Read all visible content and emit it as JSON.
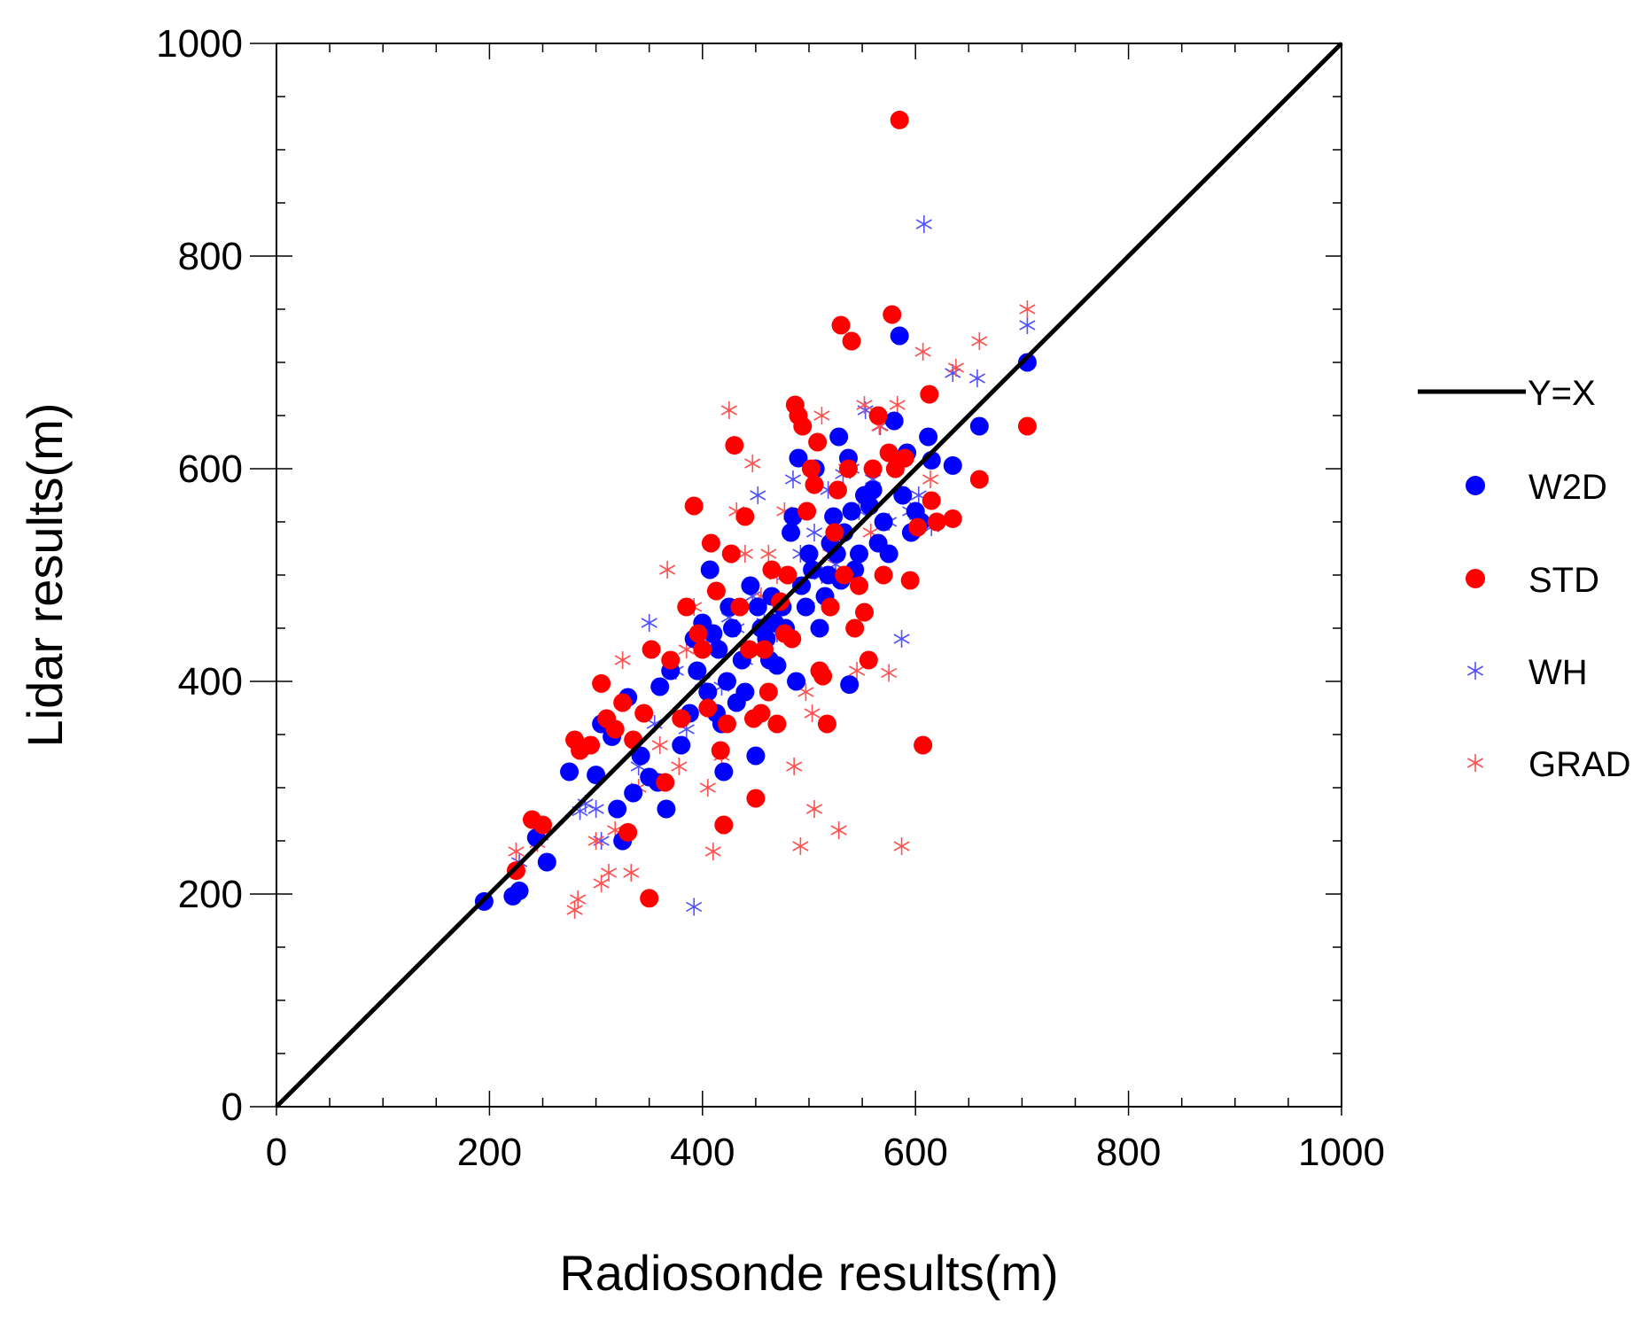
{
  "chart_data": {
    "type": "scatter",
    "title": "",
    "xlabel": "Radiosonde results(m)",
    "ylabel": "Lidar results(m)",
    "xlim": [
      0,
      1000
    ],
    "ylim": [
      0,
      1000
    ],
    "xticks": [
      0,
      200,
      400,
      600,
      800,
      1000
    ],
    "yticks": [
      0,
      200,
      400,
      600,
      800,
      1000
    ],
    "xtick_labels": [
      "0",
      "200",
      "400",
      "600",
      "800",
      "1000"
    ],
    "ytick_labels": [
      "0",
      "200",
      "400",
      "600",
      "800",
      "1000"
    ],
    "minor_tick_step": 50,
    "grid": false,
    "legend_position": "right",
    "reference_line": {
      "name": "Y=X",
      "x": [
        0,
        1000
      ],
      "y": [
        0,
        1000
      ],
      "color": "#000000"
    },
    "series": [
      {
        "name": "W2D",
        "marker": "filled-circle",
        "color": "#0000ff",
        "points": [
          [
            195,
            193
          ],
          [
            222,
            198
          ],
          [
            228,
            203
          ],
          [
            244,
            253
          ],
          [
            254,
            230
          ],
          [
            275,
            315
          ],
          [
            300,
            312
          ],
          [
            305,
            360
          ],
          [
            315,
            348
          ],
          [
            320,
            280
          ],
          [
            325,
            250
          ],
          [
            330,
            385
          ],
          [
            335,
            295
          ],
          [
            342,
            330
          ],
          [
            350,
            310
          ],
          [
            358,
            305
          ],
          [
            360,
            395
          ],
          [
            366,
            280
          ],
          [
            370,
            410
          ],
          [
            380,
            340
          ],
          [
            388,
            370
          ],
          [
            392,
            440
          ],
          [
            395,
            410
          ],
          [
            400,
            455
          ],
          [
            405,
            390
          ],
          [
            407,
            505
          ],
          [
            410,
            445
          ],
          [
            413,
            370
          ],
          [
            415,
            430
          ],
          [
            418,
            360
          ],
          [
            420,
            315
          ],
          [
            423,
            400
          ],
          [
            425,
            470
          ],
          [
            428,
            450
          ],
          [
            432,
            380
          ],
          [
            437,
            420
          ],
          [
            440,
            390
          ],
          [
            445,
            490
          ],
          [
            450,
            330
          ],
          [
            452,
            470
          ],
          [
            455,
            450
          ],
          [
            460,
            440
          ],
          [
            463,
            420
          ],
          [
            465,
            480
          ],
          [
            468,
            455
          ],
          [
            470,
            415
          ],
          [
            475,
            470
          ],
          [
            478,
            450
          ],
          [
            483,
            540
          ],
          [
            485,
            555
          ],
          [
            488,
            400
          ],
          [
            490,
            610
          ],
          [
            493,
            490
          ],
          [
            497,
            470
          ],
          [
            500,
            520
          ],
          [
            503,
            505
          ],
          [
            506,
            600
          ],
          [
            510,
            450
          ],
          [
            515,
            480
          ],
          [
            518,
            500
          ],
          [
            520,
            530
          ],
          [
            523,
            555
          ],
          [
            526,
            520
          ],
          [
            528,
            630
          ],
          [
            530,
            495
          ],
          [
            533,
            540
          ],
          [
            537,
            610
          ],
          [
            540,
            560
          ],
          [
            543,
            505
          ],
          [
            547,
            520
          ],
          [
            552,
            575
          ],
          [
            557,
            565
          ],
          [
            560,
            580
          ],
          [
            565,
            530
          ],
          [
            570,
            550
          ],
          [
            575,
            520
          ],
          [
            580,
            645
          ],
          [
            585,
            725
          ],
          [
            588,
            575
          ],
          [
            592,
            615
          ],
          [
            596,
            540
          ],
          [
            600,
            560
          ],
          [
            605,
            550
          ],
          [
            612,
            630
          ],
          [
            615,
            608
          ],
          [
            635,
            603
          ],
          [
            660,
            640
          ],
          [
            705,
            700
          ],
          [
            538,
            397
          ]
        ]
      },
      {
        "name": "STD",
        "marker": "filled-circle",
        "color": "#ff0000",
        "points": [
          [
            225,
            222
          ],
          [
            240,
            270
          ],
          [
            250,
            265
          ],
          [
            280,
            345
          ],
          [
            285,
            335
          ],
          [
            295,
            340
          ],
          [
            305,
            398
          ],
          [
            310,
            365
          ],
          [
            318,
            355
          ],
          [
            325,
            380
          ],
          [
            330,
            258
          ],
          [
            335,
            345
          ],
          [
            345,
            370
          ],
          [
            350,
            196
          ],
          [
            352,
            430
          ],
          [
            365,
            305
          ],
          [
            370,
            420
          ],
          [
            380,
            365
          ],
          [
            385,
            470
          ],
          [
            392,
            565
          ],
          [
            396,
            445
          ],
          [
            400,
            430
          ],
          [
            405,
            375
          ],
          [
            408,
            530
          ],
          [
            413,
            485
          ],
          [
            417,
            335
          ],
          [
            420,
            265
          ],
          [
            423,
            360
          ],
          [
            427,
            520
          ],
          [
            430,
            622
          ],
          [
            435,
            470
          ],
          [
            440,
            555
          ],
          [
            444,
            430
          ],
          [
            448,
            365
          ],
          [
            450,
            290
          ],
          [
            455,
            370
          ],
          [
            458,
            430
          ],
          [
            462,
            390
          ],
          [
            465,
            505
          ],
          [
            470,
            360
          ],
          [
            473,
            475
          ],
          [
            477,
            445
          ],
          [
            480,
            500
          ],
          [
            484,
            440
          ],
          [
            487,
            660
          ],
          [
            490,
            650
          ],
          [
            494,
            640
          ],
          [
            498,
            560
          ],
          [
            502,
            600
          ],
          [
            505,
            585
          ],
          [
            508,
            625
          ],
          [
            510,
            410
          ],
          [
            513,
            405
          ],
          [
            517,
            360
          ],
          [
            520,
            470
          ],
          [
            524,
            540
          ],
          [
            527,
            580
          ],
          [
            530,
            735
          ],
          [
            533,
            500
          ],
          [
            537,
            600
          ],
          [
            540,
            720
          ],
          [
            543,
            450
          ],
          [
            547,
            490
          ],
          [
            552,
            465
          ],
          [
            556,
            420
          ],
          [
            560,
            600
          ],
          [
            565,
            650
          ],
          [
            570,
            500
          ],
          [
            575,
            615
          ],
          [
            578,
            745
          ],
          [
            581,
            600
          ],
          [
            585,
            928
          ],
          [
            590,
            610
          ],
          [
            595,
            495
          ],
          [
            602,
            545
          ],
          [
            607,
            340
          ],
          [
            613,
            670
          ],
          [
            615,
            570
          ],
          [
            620,
            550
          ],
          [
            635,
            553
          ],
          [
            660,
            590
          ],
          [
            705,
            640
          ]
        ]
      },
      {
        "name": "WH",
        "marker": "asterisk",
        "color": "#5050ff",
        "points": [
          [
            228,
            230
          ],
          [
            248,
            255
          ],
          [
            285,
            278
          ],
          [
            290,
            285
          ],
          [
            300,
            280
          ],
          [
            305,
            250
          ],
          [
            340,
            320
          ],
          [
            350,
            455
          ],
          [
            355,
            360
          ],
          [
            375,
            410
          ],
          [
            385,
            355
          ],
          [
            392,
            188
          ],
          [
            400,
            400
          ],
          [
            410,
            435
          ],
          [
            418,
            395
          ],
          [
            425,
            460
          ],
          [
            432,
            450
          ],
          [
            440,
            420
          ],
          [
            447,
            480
          ],
          [
            452,
            575
          ],
          [
            458,
            455
          ],
          [
            465,
            480
          ],
          [
            470,
            445
          ],
          [
            478,
            500
          ],
          [
            485,
            590
          ],
          [
            492,
            520
          ],
          [
            498,
            470
          ],
          [
            505,
            540
          ],
          [
            512,
            500
          ],
          [
            518,
            580
          ],
          [
            525,
            510
          ],
          [
            532,
            595
          ],
          [
            540,
            600
          ],
          [
            547,
            560
          ],
          [
            553,
            655
          ],
          [
            560,
            590
          ],
          [
            567,
            640
          ],
          [
            575,
            550
          ],
          [
            582,
            600
          ],
          [
            587,
            440
          ],
          [
            595,
            560
          ],
          [
            603,
            575
          ],
          [
            608,
            830
          ],
          [
            615,
            545
          ],
          [
            635,
            690
          ],
          [
            658,
            685
          ],
          [
            705,
            735
          ]
        ]
      },
      {
        "name": "GRAD",
        "marker": "asterisk",
        "color": "#ff5050",
        "points": [
          [
            225,
            240
          ],
          [
            245,
            248
          ],
          [
            280,
            185
          ],
          [
            283,
            195
          ],
          [
            300,
            250
          ],
          [
            305,
            210
          ],
          [
            312,
            220
          ],
          [
            318,
            260
          ],
          [
            325,
            420
          ],
          [
            333,
            220
          ],
          [
            340,
            300
          ],
          [
            360,
            340
          ],
          [
            367,
            505
          ],
          [
            378,
            320
          ],
          [
            385,
            430
          ],
          [
            392,
            470
          ],
          [
            405,
            300
          ],
          [
            410,
            240
          ],
          [
            418,
            330
          ],
          [
            425,
            655
          ],
          [
            432,
            560
          ],
          [
            440,
            520
          ],
          [
            447,
            605
          ],
          [
            455,
            480
          ],
          [
            462,
            520
          ],
          [
            470,
            500
          ],
          [
            477,
            560
          ],
          [
            486,
            320
          ],
          [
            492,
            245
          ],
          [
            497,
            390
          ],
          [
            503,
            370
          ],
          [
            505,
            280
          ],
          [
            512,
            650
          ],
          [
            520,
            520
          ],
          [
            528,
            260
          ],
          [
            535,
            600
          ],
          [
            545,
            410
          ],
          [
            552,
            660
          ],
          [
            558,
            540
          ],
          [
            566,
            640
          ],
          [
            575,
            408
          ],
          [
            583,
            660
          ],
          [
            587,
            245
          ],
          [
            597,
            540
          ],
          [
            607,
            710
          ],
          [
            614,
            590
          ],
          [
            638,
            695
          ],
          [
            660,
            720
          ],
          [
            705,
            750
          ]
        ]
      }
    ]
  }
}
